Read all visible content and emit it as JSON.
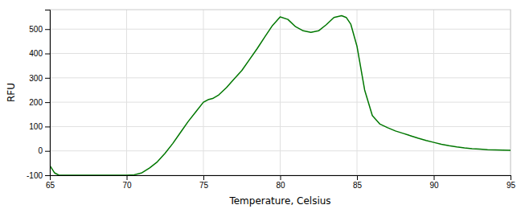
{
  "chart_data": {
    "type": "line",
    "xlabel": "Temperature, Celsius",
    "ylabel": "RFU",
    "color": "#007700",
    "xlim": [
      65,
      95
    ],
    "ylim": [
      -100,
      580
    ],
    "xticks": [
      65,
      70,
      75,
      80,
      85,
      90,
      95
    ],
    "yticks": [
      -100,
      0,
      100,
      200,
      300,
      400,
      500
    ],
    "grid": true,
    "x": [
      65.0,
      65.3,
      65.6,
      66.0,
      66.5,
      67.0,
      67.5,
      68.0,
      68.5,
      69.0,
      69.5,
      70.0,
      70.5,
      71.0,
      71.5,
      72.0,
      72.5,
      73.0,
      73.5,
      74.0,
      74.5,
      75.0,
      75.3,
      75.6,
      76.0,
      76.5,
      77.0,
      77.5,
      78.0,
      78.5,
      79.0,
      79.5,
      80.0,
      80.5,
      81.0,
      81.5,
      82.0,
      82.5,
      83.0,
      83.5,
      84.0,
      84.3,
      84.6,
      85.0,
      85.5,
      86.0,
      86.5,
      87.0,
      87.5,
      88.0,
      88.5,
      89.0,
      89.5,
      90.0,
      90.5,
      91.0,
      91.5,
      92.0,
      92.5,
      93.0,
      93.5,
      94.0,
      94.5,
      95.0
    ],
    "values": [
      -60,
      -90,
      -100,
      -100,
      -100,
      -100,
      -100,
      -100,
      -100,
      -100,
      -100,
      -100,
      -98,
      -90,
      -70,
      -45,
      -10,
      30,
      75,
      120,
      160,
      200,
      210,
      215,
      230,
      260,
      295,
      330,
      375,
      420,
      468,
      515,
      550,
      540,
      510,
      493,
      487,
      493,
      518,
      548,
      555,
      548,
      520,
      430,
      250,
      145,
      110,
      95,
      82,
      72,
      62,
      52,
      43,
      35,
      27,
      21,
      16,
      12,
      9,
      7,
      5,
      4,
      3,
      2
    ]
  }
}
